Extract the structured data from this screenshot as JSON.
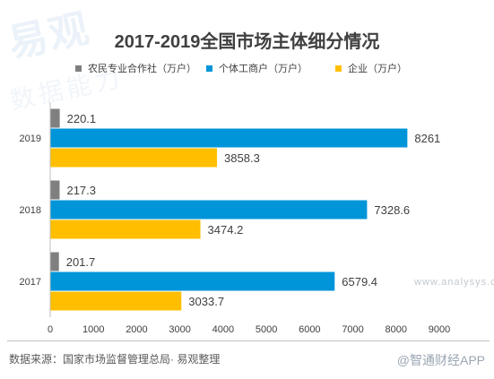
{
  "watermark": {
    "logo_text": "易观",
    "sub_text": "数据能力"
  },
  "title": "2017-2019全国市场主体细分情况",
  "source_note": "数据来源：国家市场监督管理总局· 易观整理",
  "brand_mark": "@智通财经APP",
  "url_mark": "www.analysys.cn",
  "colors": {
    "farmer": "#7f7f7f",
    "individual": "#0095d9",
    "enterprise": "#ffbf00"
  },
  "chart_data": {
    "type": "bar",
    "orientation": "horizontal",
    "title": "2017-2019全国市场主体细分情况",
    "categories": [
      "2019",
      "2018",
      "2017"
    ],
    "series": [
      {
        "name": "农民专业合作社（万户）",
        "values": [
          220.1,
          217.3,
          201.7
        ],
        "labels": [
          "220.1",
          "217.3",
          "201.7"
        ]
      },
      {
        "name": "个体工商户（万户）",
        "values": [
          8261,
          7328.6,
          6579.4
        ],
        "labels": [
          "8261",
          "7328.6",
          "6579.4"
        ]
      },
      {
        "name": "企业（万户）",
        "values": [
          3858.3,
          3474.2,
          3033.7
        ],
        "labels": [
          "3858.3",
          "3474.2",
          "3033.7"
        ]
      }
    ],
    "xlim": [
      0,
      9000
    ],
    "xticks": [
      "0",
      "1000",
      "2000",
      "3000",
      "4000",
      "5000",
      "6000",
      "7000",
      "8000",
      "9000"
    ],
    "grid": false,
    "legend_position": "top"
  }
}
